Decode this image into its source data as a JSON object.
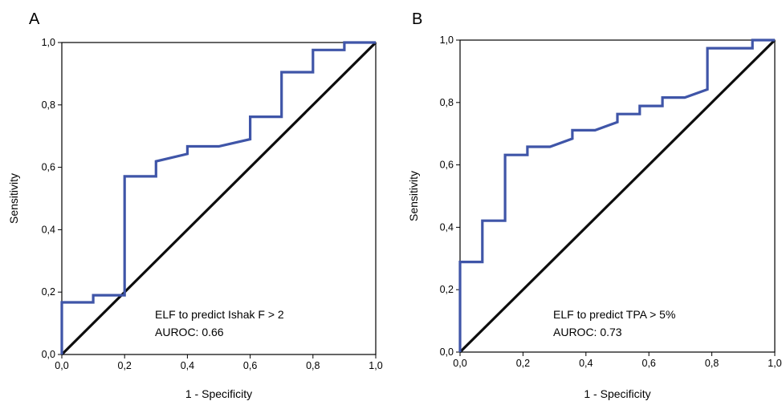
{
  "colors": {
    "roc_line": "#3f55a8",
    "reference_line": "#0d0d0d"
  },
  "chart_data": [
    {
      "type": "line",
      "panel_label": "A",
      "xlabel": "1 - Specificity",
      "ylabel": "Sensitivity",
      "xlim": [
        0,
        1
      ],
      "ylim": [
        0,
        1
      ],
      "xticks": [
        "0,0",
        "0,2",
        "0,4",
        "0,6",
        "0,8",
        "1,0"
      ],
      "yticks": [
        "0,0",
        "0,2",
        "0,4",
        "0,6",
        "0,8",
        "1,0"
      ],
      "grid": false,
      "annotation": [
        "ELF to predict Ishak F > 2",
        "AUROC: 0.66"
      ],
      "series": [
        {
          "values": [
            [
              0,
              0
            ],
            [
              0,
              0.167
            ],
            [
              0.1,
              0.167
            ],
            [
              0.1,
              0.19
            ],
            [
              0.2,
              0.19
            ],
            [
              0.2,
              0.571
            ],
            [
              0.3,
              0.571
            ],
            [
              0.3,
              0.619
            ],
            [
              0.4,
              0.643
            ],
            [
              0.4,
              0.667
            ],
            [
              0.5,
              0.667
            ],
            [
              0.6,
              0.69
            ],
            [
              0.6,
              0.762
            ],
            [
              0.7,
              0.762
            ],
            [
              0.7,
              0.905
            ],
            [
              0.8,
              0.905
            ],
            [
              0.8,
              0.976
            ],
            [
              0.9,
              0.976
            ],
            [
              0.9,
              1.0
            ],
            [
              1.0,
              1.0
            ]
          ]
        },
        {
          "values": [
            [
              0,
              0
            ],
            [
              1,
              1
            ]
          ]
        }
      ]
    },
    {
      "type": "line",
      "panel_label": "B",
      "xlabel": "1 - Specificity",
      "ylabel": "Sensitivity",
      "xlim": [
        0,
        1
      ],
      "ylim": [
        0,
        1
      ],
      "xticks": [
        "0,0",
        "0,2",
        "0,4",
        "0,6",
        "0,8",
        "1,0"
      ],
      "yticks": [
        "0,0",
        "0,2",
        "0,4",
        "0,6",
        "0,8",
        "1,0"
      ],
      "grid": false,
      "annotation": [
        "ELF to predict TPA > 5%",
        "AUROC: 0.73"
      ],
      "series": [
        {
          "values": [
            [
              0,
              0
            ],
            [
              0,
              0.289
            ],
            [
              0.071,
              0.289
            ],
            [
              0.071,
              0.421
            ],
            [
              0.143,
              0.421
            ],
            [
              0.143,
              0.632
            ],
            [
              0.214,
              0.632
            ],
            [
              0.214,
              0.658
            ],
            [
              0.286,
              0.658
            ],
            [
              0.357,
              0.684
            ],
            [
              0.357,
              0.711
            ],
            [
              0.429,
              0.711
            ],
            [
              0.5,
              0.737
            ],
            [
              0.5,
              0.763
            ],
            [
              0.571,
              0.763
            ],
            [
              0.571,
              0.789
            ],
            [
              0.643,
              0.789
            ],
            [
              0.643,
              0.816
            ],
            [
              0.714,
              0.816
            ],
            [
              0.786,
              0.842
            ],
            [
              0.786,
              0.974
            ],
            [
              0.929,
              0.974
            ],
            [
              0.929,
              1.0
            ],
            [
              1.0,
              1.0
            ]
          ]
        },
        {
          "values": [
            [
              0,
              0
            ],
            [
              1,
              1
            ]
          ]
        }
      ]
    }
  ]
}
